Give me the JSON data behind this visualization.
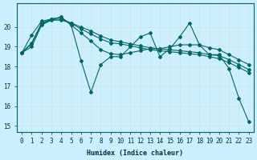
{
  "xlabel": "Humidex (Indice chaleur)",
  "background_color": "#cceeff",
  "grid_color": "#aaddcc",
  "line_color": "#006666",
  "xlim": [
    -0.5,
    23.5
  ],
  "ylim": [
    14.7,
    21.2
  ],
  "yticks": [
    15,
    16,
    17,
    18,
    19,
    20
  ],
  "xticks": [
    0,
    1,
    2,
    3,
    4,
    5,
    6,
    7,
    8,
    9,
    10,
    11,
    12,
    13,
    14,
    15,
    16,
    17,
    18,
    19,
    20,
    21,
    22,
    23
  ],
  "series1": [
    18.7,
    19.6,
    20.3,
    20.4,
    20.5,
    20.1,
    18.3,
    16.7,
    18.1,
    18.5,
    18.5,
    19.0,
    19.5,
    19.7,
    18.5,
    18.9,
    19.5,
    20.2,
    19.1,
    18.6,
    18.6,
    17.9,
    16.4,
    15.2
  ],
  "series2": [
    18.7,
    19.2,
    20.2,
    20.4,
    20.5,
    20.1,
    19.7,
    19.3,
    18.85,
    18.65,
    18.6,
    18.7,
    18.8,
    18.9,
    18.9,
    19.0,
    19.1,
    19.1,
    19.1,
    18.95,
    18.85,
    18.6,
    18.35,
    18.1
  ],
  "series3": [
    18.7,
    19.15,
    20.15,
    20.38,
    20.4,
    20.2,
    20.0,
    19.8,
    19.55,
    19.35,
    19.25,
    19.15,
    19.05,
    18.95,
    18.9,
    18.85,
    18.8,
    18.75,
    18.7,
    18.6,
    18.55,
    18.35,
    18.1,
    17.85
  ],
  "series4": [
    18.7,
    19.0,
    20.1,
    20.35,
    20.35,
    20.2,
    19.9,
    19.65,
    19.4,
    19.2,
    19.15,
    19.05,
    18.95,
    18.85,
    18.8,
    18.75,
    18.7,
    18.65,
    18.6,
    18.5,
    18.4,
    18.2,
    17.95,
    17.7
  ]
}
